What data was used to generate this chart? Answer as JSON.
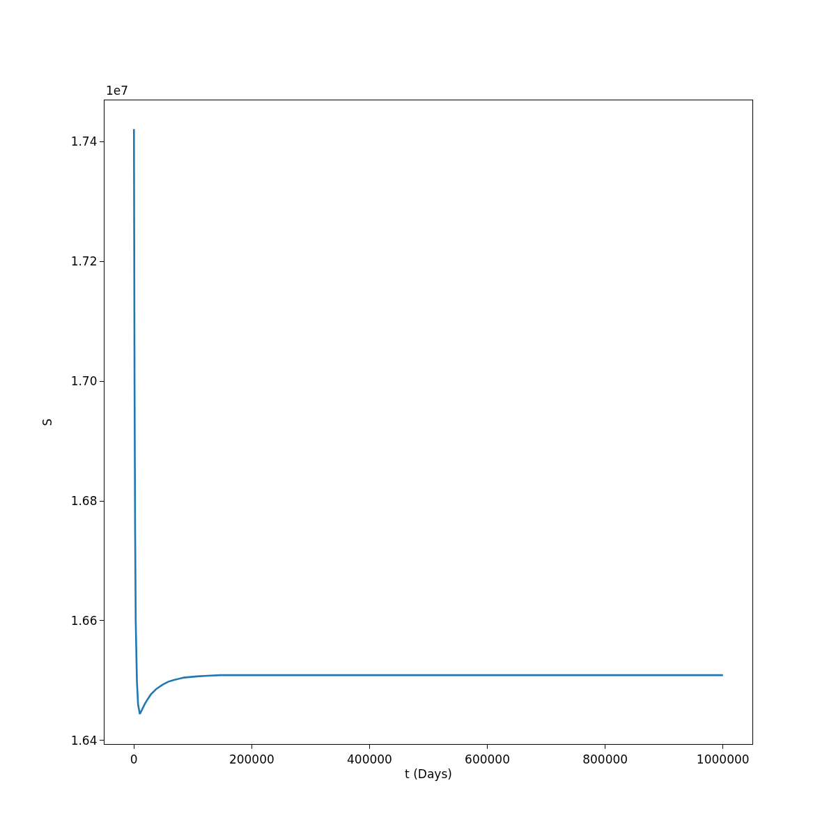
{
  "chart_data": {
    "type": "line",
    "xlabel": "t (Days)",
    "ylabel": "S",
    "annotations": [
      "1e7"
    ],
    "x": [
      0,
      1000,
      2000,
      3000,
      5000,
      7000,
      10000,
      15000,
      19000,
      24000,
      28800,
      38000,
      48500,
      58000,
      68000,
      85000,
      107000,
      125000,
      147000,
      200000,
      250000,
      500000,
      750000,
      1000000
    ],
    "series": [
      {
        "color": "#1f77b4",
        "values": [
          1.7421,
          1.7,
          1.675,
          1.66,
          1.65,
          1.646,
          1.6444,
          1.6454,
          1.6462,
          1.647,
          1.6477,
          1.6486,
          1.6493,
          1.6498,
          1.6501,
          1.6505,
          1.6507,
          1.6508,
          1.6509,
          1.6509,
          1.6509,
          1.6509,
          1.6509,
          1.6509
        ]
      }
    ],
    "xlim": [
      -50000,
      1050000
    ],
    "xticks": [
      0,
      200000,
      400000,
      600000,
      800000,
      1000000
    ],
    "ylim": [
      1.6394,
      1.7469
    ],
    "yticks": [
      1.64,
      1.66,
      1.68,
      {
        "value": 1.7,
        "label": "1.70"
      },
      1.72,
      1.74
    ],
    "grid": false,
    "marker": "none",
    "line_style": "solid"
  }
}
